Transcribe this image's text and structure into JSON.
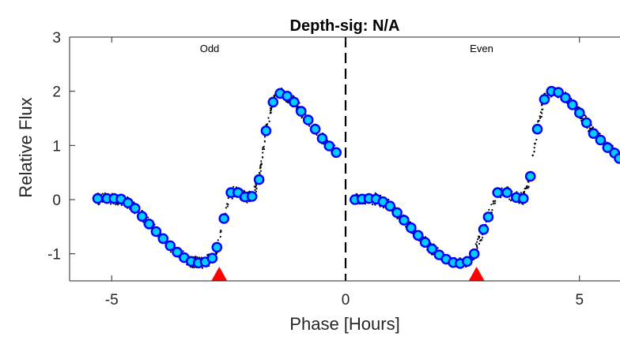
{
  "chart_data": {
    "type": "scatter",
    "title": "Depth-sig: N/A",
    "xlabel": "Phase [Hours]",
    "ylabel": "Relative Flux",
    "xlim": [
      -5.9,
      5.9
    ],
    "ylim": [
      -1.5,
      3
    ],
    "xticks": [
      -5,
      0,
      5
    ],
    "yticks": [
      -1,
      0,
      1,
      2,
      3
    ],
    "grid": false,
    "panel_labels": [
      "Odd",
      "Even"
    ],
    "divider_x": 0,
    "colors": {
      "raw_points": "#000000",
      "binned_fill": "#00ccff",
      "binned_edge": "#0000ff",
      "marker": "#ff0000",
      "divider": "#000000"
    },
    "series": [
      {
        "kind": "binned",
        "x": [
          -5.3,
          -5.1,
          -4.95,
          -4.8,
          -4.65,
          -4.5,
          -4.35,
          -4.2,
          -4.05,
          -3.9,
          -3.75,
          -3.6,
          -3.45,
          -3.3,
          -3.15,
          -3.0,
          -2.85,
          -2.75,
          -2.6,
          -2.45,
          -2.3,
          -2.15,
          -2.0,
          -1.85,
          -1.7,
          -1.55,
          -1.4,
          -1.25,
          -1.1,
          -0.95,
          -0.8,
          -0.65,
          -0.5,
          -0.35,
          -0.2
        ],
        "y": [
          0.02,
          0.02,
          0.02,
          0.01,
          -0.06,
          -0.16,
          -0.31,
          -0.45,
          -0.59,
          -0.72,
          -0.85,
          -0.97,
          -1.07,
          -1.14,
          -1.17,
          -1.15,
          -1.08,
          -0.88,
          -0.35,
          0.13,
          0.13,
          0.05,
          0.06,
          0.37,
          1.27,
          1.8,
          1.96,
          1.91,
          1.8,
          1.63,
          1.47,
          1.3,
          1.13,
          0.99,
          0.87
        ]
      },
      {
        "kind": "binned",
        "x": [
          0.2,
          0.35,
          0.5,
          0.65,
          0.8,
          0.95,
          1.1,
          1.25,
          1.4,
          1.55,
          1.7,
          1.85,
          2.0,
          2.15,
          2.3,
          2.45,
          2.6,
          2.75,
          2.95,
          3.05,
          3.25,
          3.45,
          3.65,
          3.8,
          3.95,
          4.1,
          4.25,
          4.4,
          4.55,
          4.7,
          4.85,
          5.0,
          5.15,
          5.3,
          5.45,
          5.6,
          5.75,
          5.85
        ],
        "y": [
          0.0,
          0.01,
          0.02,
          0.01,
          -0.04,
          -0.12,
          -0.24,
          -0.38,
          -0.52,
          -0.66,
          -0.79,
          -0.91,
          -1.02,
          -1.1,
          -1.16,
          -1.18,
          -1.14,
          -1.0,
          -0.55,
          -0.32,
          0.13,
          0.13,
          0.04,
          0.02,
          0.43,
          1.3,
          1.85,
          2.0,
          1.98,
          1.88,
          1.75,
          1.6,
          1.42,
          1.22,
          1.1,
          0.96,
          0.86,
          0.76
        ]
      }
    ],
    "event_markers": [
      {
        "x": -2.7,
        "y": -1.45
      },
      {
        "x": 2.8,
        "y": -1.45
      }
    ]
  }
}
